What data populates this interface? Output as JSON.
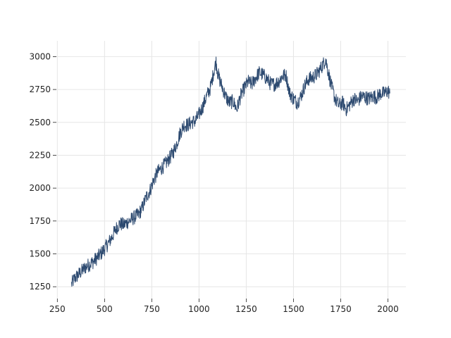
{
  "chart_data": {
    "type": "line",
    "title": "",
    "xlabel": "",
    "ylabel": "",
    "xlim": [
      245,
      2095
    ],
    "ylim": [
      1160,
      3120
    ],
    "x_ticks": [
      250,
      500,
      750,
      1000,
      1250,
      1500,
      1750,
      2000
    ],
    "y_ticks": [
      1250,
      1500,
      1750,
      2000,
      2250,
      2500,
      2750,
      3000
    ],
    "grid": true,
    "line_color": "#2d4a70",
    "grid_color": "#e6e6e6",
    "series": [
      {
        "x": [
          325,
          340,
          360,
          380,
          400,
          420,
          440,
          460,
          480,
          500,
          520,
          540,
          560,
          580,
          600,
          620,
          640,
          660,
          680,
          700,
          720,
          740,
          760,
          780,
          800,
          820,
          840,
          860,
          880,
          900,
          920,
          940,
          960,
          980,
          1000,
          1020,
          1040,
          1060,
          1080,
          1090,
          1100,
          1110,
          1120,
          1140,
          1160,
          1180,
          1200,
          1220,
          1240,
          1260,
          1280,
          1300,
          1320,
          1340,
          1360,
          1380,
          1400,
          1420,
          1440,
          1460,
          1480,
          1500,
          1520,
          1540,
          1560,
          1580,
          1600,
          1620,
          1640,
          1660,
          1670,
          1680,
          1700,
          1720,
          1740,
          1760,
          1780,
          1800,
          1820,
          1840,
          1860,
          1880,
          1900,
          1920,
          1940,
          1960,
          1980,
          2000,
          2010
        ],
        "y": [
          1270,
          1310,
          1340,
          1370,
          1400,
          1420,
          1440,
          1470,
          1500,
          1540,
          1580,
          1630,
          1690,
          1730,
          1720,
          1740,
          1760,
          1780,
          1800,
          1850,
          1930,
          1980,
          2060,
          2120,
          2150,
          2180,
          2220,
          2260,
          2330,
          2420,
          2480,
          2480,
          2500,
          2510,
          2560,
          2620,
          2700,
          2760,
          2900,
          2960,
          2870,
          2820,
          2780,
          2700,
          2650,
          2660,
          2600,
          2700,
          2760,
          2810,
          2790,
          2840,
          2880,
          2860,
          2830,
          2790,
          2790,
          2810,
          2850,
          2860,
          2720,
          2680,
          2650,
          2700,
          2780,
          2830,
          2840,
          2860,
          2900,
          2950,
          2980,
          2910,
          2780,
          2680,
          2630,
          2650,
          2600,
          2640,
          2680,
          2660,
          2700,
          2690,
          2680,
          2700,
          2690,
          2720,
          2720,
          2740,
          2720
        ]
      }
    ]
  }
}
